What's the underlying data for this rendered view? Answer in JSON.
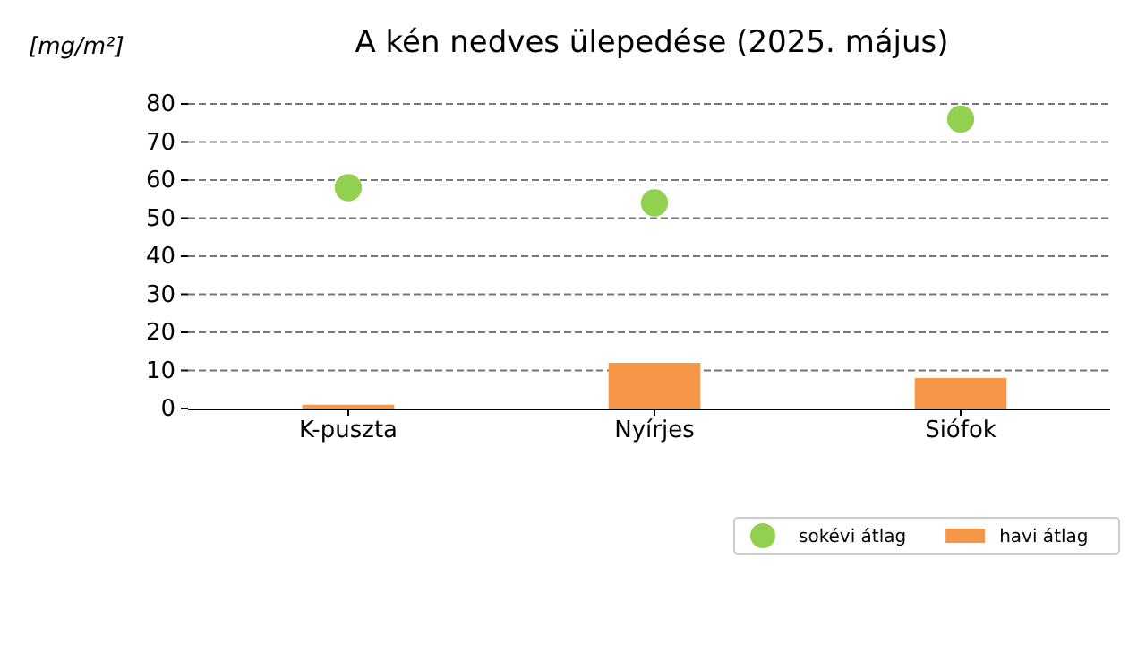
{
  "chart_data": {
    "type": "bar",
    "title": "A kén nedves ülepedése (2025. május)",
    "ylabel": "[mg/m²]",
    "categories": [
      "K-puszta",
      "Nyírjes",
      "Siófok"
    ],
    "series": [
      {
        "name": "sokévi átlag",
        "type": "scatter",
        "color": "#92d050",
        "values": [
          58,
          54,
          76
        ],
        "marker": "circle"
      },
      {
        "name": "havi átlag",
        "color": "#f79646",
        "values": [
          1,
          12,
          8
        ]
      }
    ],
    "ylim": [
      0,
      80
    ],
    "yticks": [
      0,
      10,
      20,
      30,
      40,
      50,
      60,
      70,
      80
    ],
    "grid": "y",
    "legend": "bottom right"
  }
}
